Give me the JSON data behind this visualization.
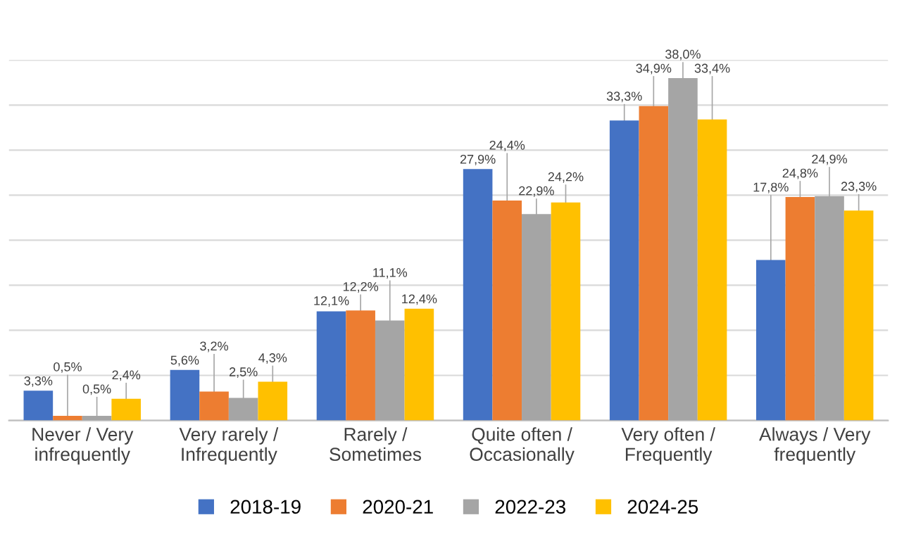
{
  "chart_data": {
    "type": "bar",
    "categories": [
      "Never / Very\ninfrequently",
      "Very rarely /\nInfrequently",
      "Rarely /\nSometimes",
      "Quite often /\nOccasionally",
      "Very often /\nFrequently",
      "Always / Very\nfrequently"
    ],
    "series": [
      {
        "name": "2018-19",
        "color": "#4472c4",
        "values": [
          3.3,
          5.6,
          12.1,
          27.9,
          33.3,
          17.8
        ],
        "value_labels": [
          "3,3%",
          "5,6%",
          "12,1%",
          "27,9%",
          "33,3%",
          "17,8%"
        ]
      },
      {
        "name": "2020-21",
        "color": "#ed7d31",
        "values": [
          0.5,
          3.2,
          12.2,
          24.4,
          34.9,
          24.8
        ],
        "value_labels": [
          "0,5%",
          "3,2%",
          "12,2%",
          "24,4%",
          "34,9%",
          "24,8%"
        ]
      },
      {
        "name": "2022-23",
        "color": "#a5a5a5",
        "values": [
          0.5,
          2.5,
          11.1,
          22.9,
          38.0,
          24.9
        ],
        "value_labels": [
          "0,5%",
          "2,5%",
          "11,1%",
          "22,9%",
          "38,0%",
          "24,9%"
        ]
      },
      {
        "name": "2024-25",
        "color": "#ffc000",
        "values": [
          2.4,
          4.3,
          12.4,
          24.2,
          33.4,
          23.3
        ],
        "value_labels": [
          "2,4%",
          "4,3%",
          "12,4%",
          "24,2%",
          "33,4%",
          "23,3%"
        ]
      }
    ],
    "ylim": [
      0,
      40
    ],
    "yticks": [
      {
        "value": 0,
        "label": null
      },
      {
        "value": 5,
        "label": null
      },
      {
        "value": 10,
        "label": null
      },
      {
        "value": 15,
        "label": null
      },
      {
        "value": 20,
        "label": null
      },
      {
        "value": 25,
        "label": null
      },
      {
        "value": 30,
        "label": null
      },
      {
        "value": 35,
        "label": null
      },
      {
        "value": 40,
        "label": null
      }
    ],
    "tick_labels": "x",
    "grid": "y",
    "legend": "bottom"
  }
}
